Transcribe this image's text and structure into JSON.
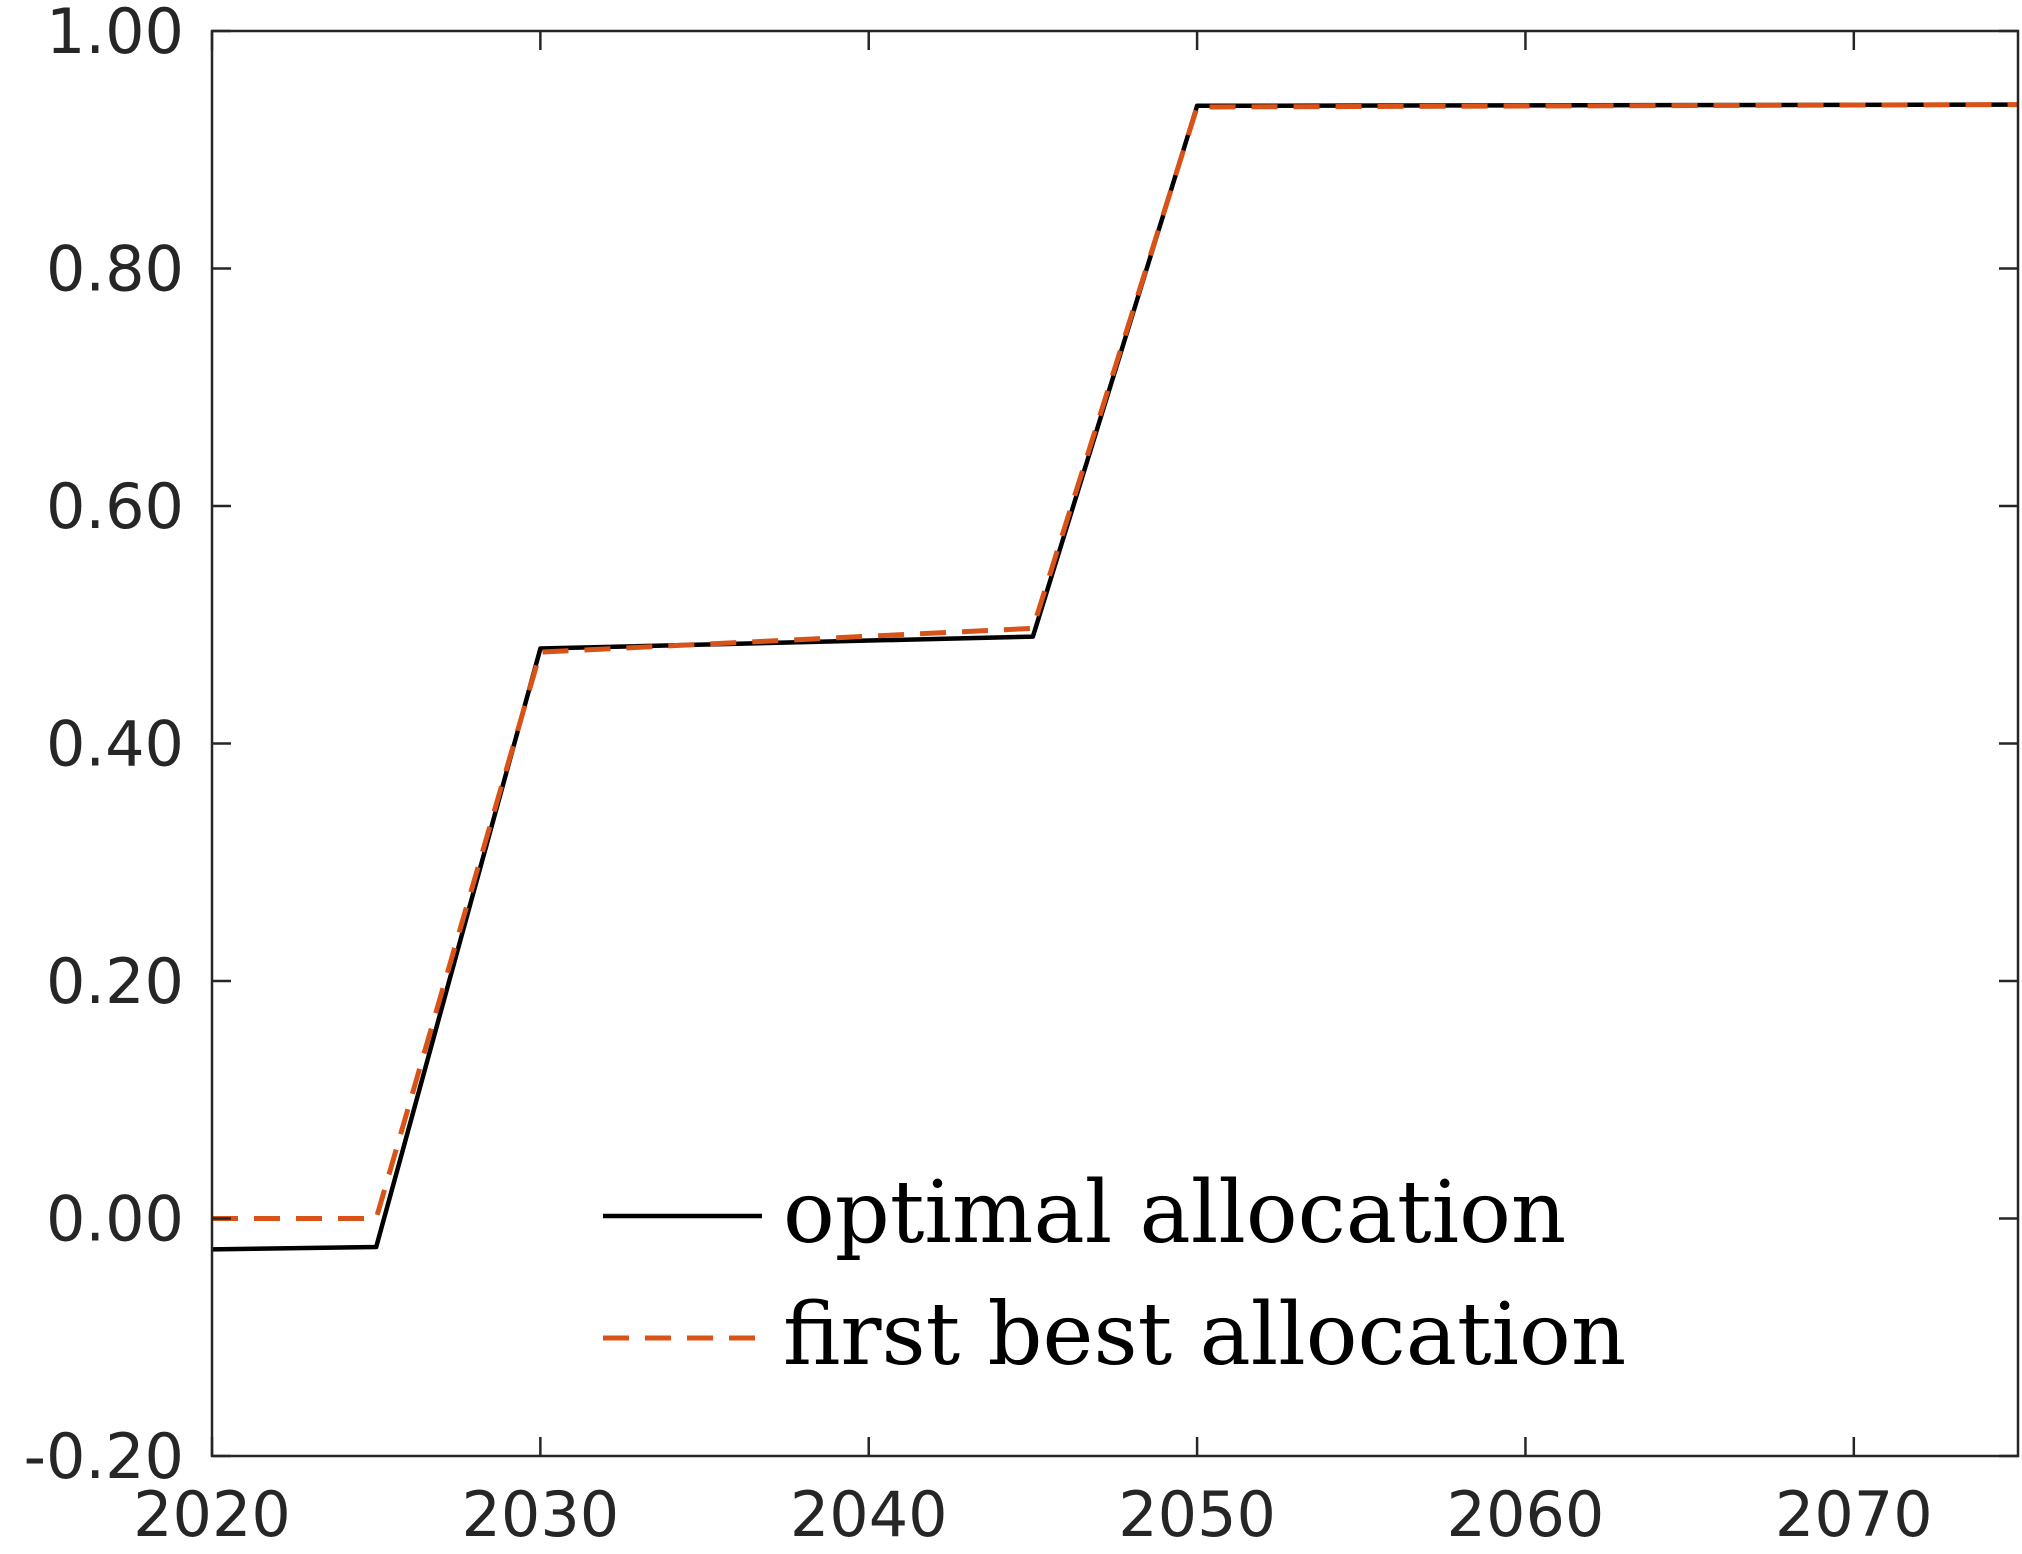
{
  "chart_data": {
    "type": "line",
    "title": "",
    "xlabel": "",
    "ylabel": "",
    "xlim": [
      2020,
      2075
    ],
    "ylim": [
      -0.2,
      1.0
    ],
    "x_ticks": [
      2020,
      2030,
      2040,
      2050,
      2060,
      2070
    ],
    "x_tick_labels": [
      "2020",
      "2030",
      "2040",
      "2050",
      "2060",
      "2070"
    ],
    "y_ticks": [
      -0.2,
      0.0,
      0.2,
      0.4,
      0.6,
      0.8,
      1.0
    ],
    "y_tick_labels": [
      "-0.20",
      "0.00",
      "0.20",
      "0.40",
      "0.60",
      "0.80",
      "1.00"
    ],
    "grid": false,
    "legend_position": "bottom-center",
    "series": [
      {
        "name": "optimal allocation",
        "color": "#000000",
        "style": "solid",
        "x": [
          2020,
          2025,
          2030,
          2045,
          2050,
          2075
        ],
        "y": [
          -0.026,
          -0.024,
          0.48,
          0.49,
          0.937,
          0.938
        ]
      },
      {
        "name": "first best allocation",
        "color": "#D95319",
        "style": "dashed",
        "x": [
          2020,
          2025,
          2030,
          2045,
          2050,
          2075
        ],
        "y": [
          0.0,
          0.0,
          0.477,
          0.497,
          0.936,
          0.938
        ]
      }
    ]
  }
}
